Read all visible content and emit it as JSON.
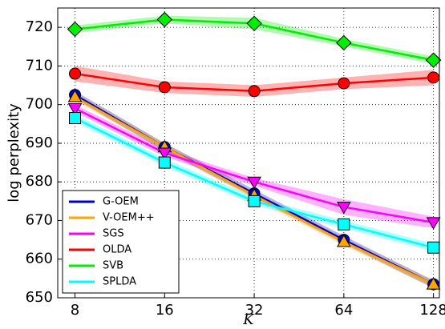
{
  "chart_data": {
    "type": "line",
    "x_label": "K",
    "y_label": "log perplexity",
    "x": [
      8,
      16,
      32,
      64,
      128
    ],
    "xscale": "log2",
    "xlim": [
      7,
      134
    ],
    "xticks": [
      8,
      16,
      32,
      64,
      128
    ],
    "ylim": [
      650,
      725
    ],
    "yticks": [
      650,
      660,
      670,
      680,
      690,
      700,
      710,
      720
    ],
    "grid": true,
    "legend": "lower left",
    "series": [
      {
        "name": "G-OEM",
        "color": "#0000cc",
        "marker": "circle",
        "values": [
          702.5,
          689,
          677,
          665,
          653.5
        ],
        "error": [
          1,
          1,
          1,
          1,
          1
        ]
      },
      {
        "name": "V-OEM++",
        "color": "#ffa500",
        "marker": "triangle-up",
        "values": [
          702,
          689,
          676.5,
          664.5,
          653.5
        ],
        "error": [
          1,
          1,
          1,
          1,
          1
        ]
      },
      {
        "name": "SGS",
        "color": "#ff00ff",
        "marker": "triangle-down",
        "values": [
          699,
          687.5,
          680,
          673.5,
          669.5
        ],
        "error": [
          1,
          1,
          1,
          2,
          1.5
        ]
      },
      {
        "name": "OLDA",
        "color": "#ff0000",
        "marker": "circle",
        "values": [
          708,
          704.5,
          703.5,
          705.5,
          707
        ],
        "error": [
          2,
          1.5,
          1.5,
          1.5,
          2
        ]
      },
      {
        "name": "SVB",
        "color": "#00ee00",
        "marker": "diamond",
        "values": [
          719.5,
          722,
          721,
          716,
          711.5
        ],
        "error": [
          1,
          1,
          1.5,
          1,
          1
        ]
      },
      {
        "name": "SPLDA",
        "color": "#00ffff",
        "marker": "square",
        "values": [
          696.5,
          685,
          675,
          669,
          663
        ],
        "error": [
          1,
          1,
          1,
          1,
          1
        ]
      }
    ]
  }
}
